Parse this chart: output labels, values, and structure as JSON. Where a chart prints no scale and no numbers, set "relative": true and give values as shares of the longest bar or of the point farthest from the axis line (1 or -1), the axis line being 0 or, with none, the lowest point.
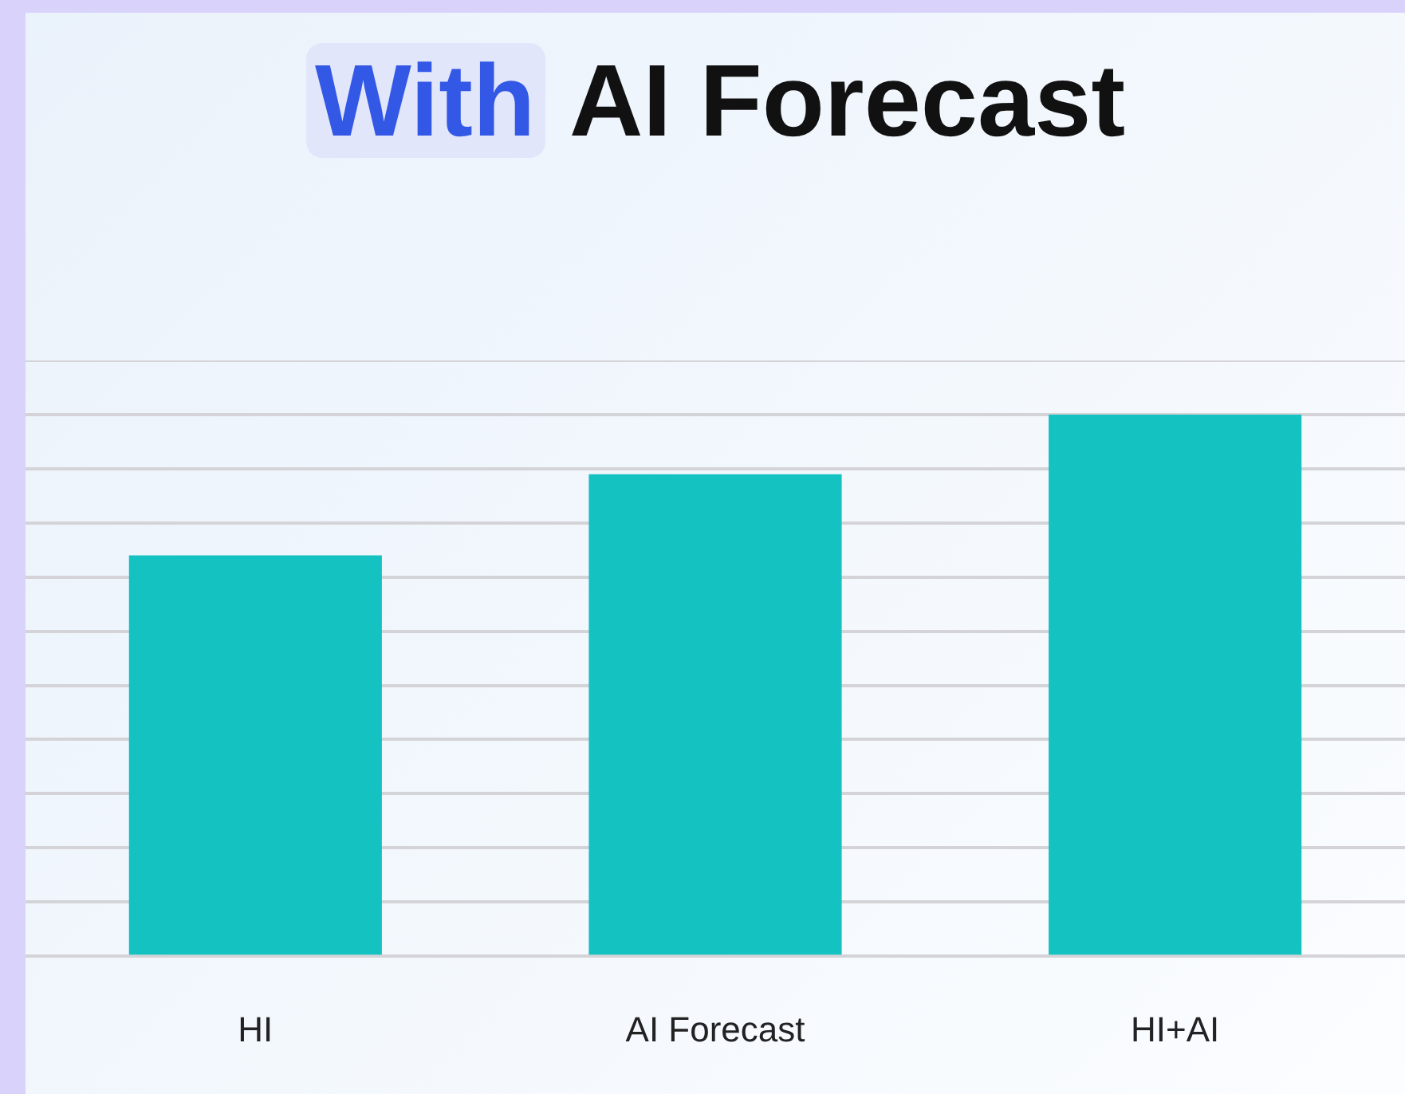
{
  "chart_data": {
    "type": "bar",
    "title": "With AI Forecast",
    "categories": [
      "HI",
      "AI Forecast",
      "HI+AI"
    ],
    "values": [
      0.74,
      0.89,
      1
    ],
    "color": "#14c2c2",
    "relative": true,
    "grid": "y"
  }
}
